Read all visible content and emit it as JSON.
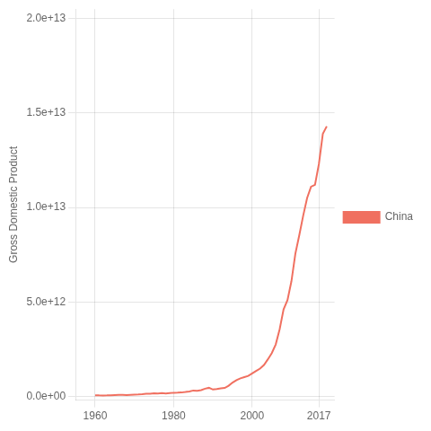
{
  "chart_data": {
    "type": "line",
    "ylabel": "Gross Domestic Product",
    "x": [
      1960,
      1961,
      1962,
      1963,
      1964,
      1965,
      1966,
      1967,
      1968,
      1969,
      1970,
      1971,
      1972,
      1973,
      1974,
      1975,
      1976,
      1977,
      1978,
      1979,
      1980,
      1981,
      1982,
      1983,
      1984,
      1985,
      1986,
      1987,
      1988,
      1989,
      1990,
      1991,
      1992,
      1993,
      1994,
      1995,
      1996,
      1997,
      1998,
      1999,
      2000,
      2001,
      2002,
      2003,
      2004,
      2005,
      2006,
      2007,
      2008,
      2009,
      2010,
      2011,
      2012,
      2013,
      2014,
      2015,
      2016,
      2017,
      2018,
      2019
    ],
    "series": [
      {
        "name": "China",
        "color": "#F07060",
        "values": [
          59700000000.0,
          50000000000.0,
          47400000000.0,
          50200000000.0,
          59300000000.0,
          70300000000.0,
          77200000000.0,
          72700000000.0,
          69900000000.0,
          79600000000.0,
          91600000000.0,
          98900000000.0,
          112000000000.0,
          136000000000.0,
          141000000000.0,
          163000000000.0,
          153000000000.0,
          172000000000.0,
          149000000000.0,
          176000000000.0,
          191000000000.0,
          194000000000.0,
          203000000000.0,
          228000000000.0,
          260000000000.0,
          309000000000.0,
          297000000000.0,
          325000000000.0,
          404000000000.0,
          451000000000.0,
          361000000000.0,
          383000000000.0,
          427000000000.0,
          444000000000.0,
          559000000000.0,
          728000000000.0,
          856000000000.0,
          952000000000.0,
          1020000000000.0,
          1080000000000.0,
          1210000000000.0,
          1340000000000.0,
          1470000000000.0,
          1660000000000.0,
          1960000000000.0,
          2290000000000.0,
          2750000000000.0,
          3550000000000.0,
          4600000000000.0,
          5100000000000.0,
          6090000000000.0,
          7550000000000.0,
          8530000000000.0,
          9570000000000.0,
          10500000000000.0,
          11100000000000.0,
          11200000000000.0,
          12300000000000.0,
          13900000000000.0,
          14300000000000.0
        ]
      }
    ],
    "xlim": [
      1955,
      2021
    ],
    "xticks": [
      1960,
      1980,
      2000,
      2017
    ],
    "ylim": [
      -200000000000.0,
      20500000000000.0
    ],
    "yticks": [
      {
        "value": 0,
        "label": "0.0e+00"
      },
      {
        "value": 5000000000000.0,
        "label": "5.0e+12"
      },
      {
        "value": 10000000000000.0,
        "label": "1.0e+13"
      },
      {
        "value": 15000000000000.0,
        "label": "1.5e+13"
      },
      {
        "value": 20000000000000.0,
        "label": "2.0e+13"
      }
    ],
    "grid": true,
    "legend": "right"
  }
}
